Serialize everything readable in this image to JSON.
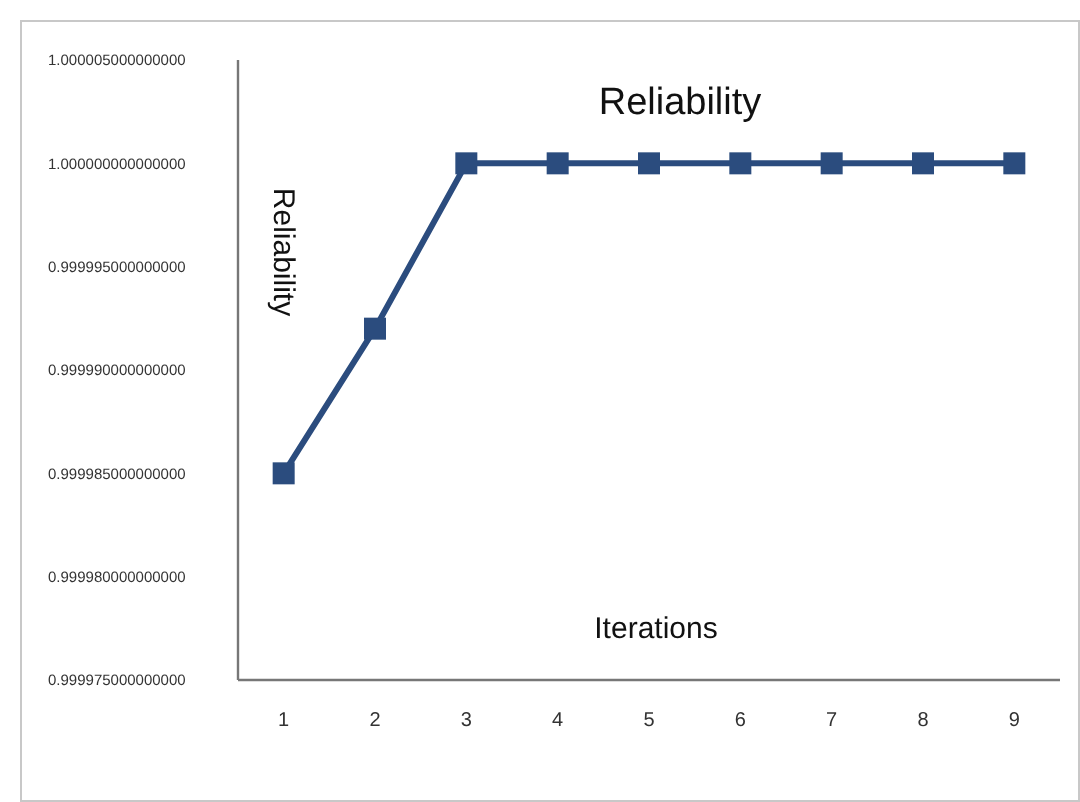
{
  "chart_data": {
    "type": "line",
    "title": "Reliability",
    "xlabel": "Iterations",
    "ylabel": "Reliability",
    "categories": [
      "1",
      "2",
      "3",
      "4",
      "5",
      "6",
      "7",
      "8",
      "9"
    ],
    "series": [
      {
        "color": "#2b4c7e",
        "values": [
          0.999985,
          0.999992,
          1,
          1,
          1,
          1,
          1,
          1,
          1
        ]
      }
    ],
    "ylim": [
      0.999975,
      1.000005
    ],
    "yticks": [
      {
        "value": 0.999975,
        "label": "0.999975000000000"
      },
      {
        "value": 0.99998,
        "label": "0.999980000000000"
      },
      {
        "value": 0.999985,
        "label": "0.999985000000000"
      },
      {
        "value": 0.99999,
        "label": "0.999990000000000"
      },
      {
        "value": 0.999995,
        "label": "0.999995000000000"
      },
      {
        "value": 1,
        "label": "1.000000000000000"
      },
      {
        "value": 1.000005,
        "label": "1.000005000000000"
      }
    ],
    "grid": false,
    "marker": "square",
    "line_style": "solid"
  }
}
